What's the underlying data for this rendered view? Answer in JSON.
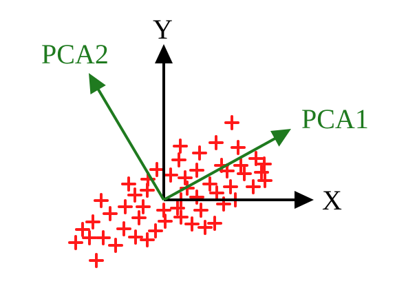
{
  "labels": {
    "x_axis": "X",
    "y_axis": "Y",
    "pca1": "PCA1",
    "pca2": "PCA2"
  },
  "colors": {
    "axes": "#000000",
    "pca_vectors": "#1f7a1f",
    "points": "#ff1a1a"
  },
  "point_count": 55
}
